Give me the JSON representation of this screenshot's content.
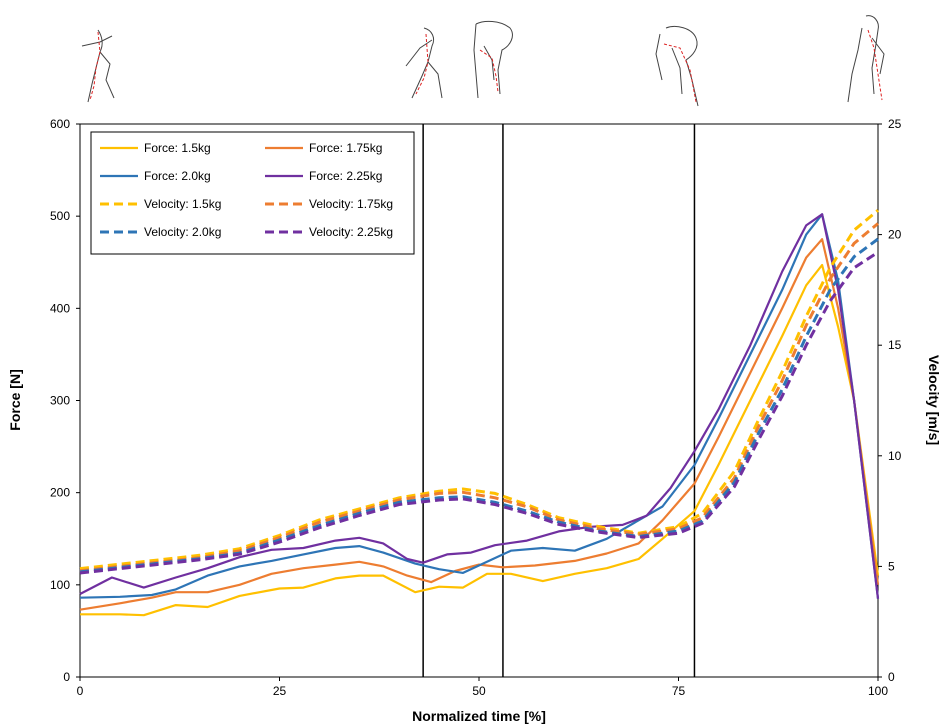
{
  "chart_data": {
    "type": "line",
    "xlabel": "Normalized time [%]",
    "ylabel": "Force [N]",
    "y2label": "Velocity [m/s]",
    "xlim": [
      0,
      100
    ],
    "ylim": [
      0,
      600
    ],
    "y2lim": [
      0,
      25
    ],
    "xticks": [
      "0",
      "25",
      "50",
      "75",
      "100"
    ],
    "yticks": [
      "0",
      "100",
      "200",
      "300",
      "400",
      "500",
      "600"
    ],
    "y2ticks": [
      "0",
      "5",
      "10",
      "15",
      "20",
      "25"
    ],
    "phase_lines_x": [
      43,
      53,
      77
    ],
    "legend_position": "top-left",
    "grid": false,
    "series": [
      {
        "name": "Force: 1.5kg",
        "axis": "left",
        "dash": false,
        "color": "#FFC000",
        "points": [
          [
            0,
            68
          ],
          [
            5,
            68
          ],
          [
            8,
            67
          ],
          [
            12,
            78
          ],
          [
            16,
            76
          ],
          [
            20,
            88
          ],
          [
            25,
            96
          ],
          [
            28,
            97
          ],
          [
            32,
            107
          ],
          [
            35,
            110
          ],
          [
            38,
            110
          ],
          [
            42,
            92
          ],
          [
            45,
            98
          ],
          [
            48,
            97
          ],
          [
            51,
            112
          ],
          [
            54,
            112
          ],
          [
            58,
            104
          ],
          [
            62,
            112
          ],
          [
            66,
            118
          ],
          [
            70,
            128
          ],
          [
            73,
            150
          ],
          [
            77,
            180
          ],
          [
            80,
            230
          ],
          [
            84,
            300
          ],
          [
            88,
            370
          ],
          [
            91,
            425
          ],
          [
            93,
            447
          ],
          [
            95,
            380
          ],
          [
            97,
            300
          ],
          [
            100,
            110
          ]
        ]
      },
      {
        "name": "Force: 1.75kg",
        "axis": "left",
        "dash": false,
        "color": "#ED7D31",
        "points": [
          [
            0,
            73
          ],
          [
            5,
            80
          ],
          [
            9,
            86
          ],
          [
            12,
            92
          ],
          [
            16,
            92
          ],
          [
            20,
            100
          ],
          [
            24,
            112
          ],
          [
            28,
            118
          ],
          [
            32,
            122
          ],
          [
            35,
            125
          ],
          [
            38,
            120
          ],
          [
            41,
            110
          ],
          [
            44,
            103
          ],
          [
            47,
            115
          ],
          [
            50,
            122
          ],
          [
            53,
            119
          ],
          [
            57,
            121
          ],
          [
            62,
            126
          ],
          [
            66,
            134
          ],
          [
            70,
            145
          ],
          [
            73,
            170
          ],
          [
            77,
            210
          ],
          [
            80,
            260
          ],
          [
            84,
            330
          ],
          [
            88,
            400
          ],
          [
            91,
            455
          ],
          [
            93,
            475
          ],
          [
            95,
            400
          ],
          [
            97,
            300
          ],
          [
            100,
            100
          ]
        ]
      },
      {
        "name": "Force: 2.0kg",
        "axis": "left",
        "dash": false,
        "color": "#2E75B6",
        "points": [
          [
            0,
            86
          ],
          [
            5,
            87
          ],
          [
            9,
            89
          ],
          [
            12,
            95
          ],
          [
            16,
            110
          ],
          [
            20,
            120
          ],
          [
            24,
            126
          ],
          [
            28,
            133
          ],
          [
            32,
            140
          ],
          [
            35,
            142
          ],
          [
            38,
            135
          ],
          [
            42,
            123
          ],
          [
            45,
            117
          ],
          [
            48,
            113
          ],
          [
            51,
            125
          ],
          [
            54,
            137
          ],
          [
            58,
            140
          ],
          [
            62,
            137
          ],
          [
            66,
            150
          ],
          [
            70,
            170
          ],
          [
            73,
            185
          ],
          [
            77,
            230
          ],
          [
            80,
            280
          ],
          [
            84,
            350
          ],
          [
            88,
            420
          ],
          [
            91,
            480
          ],
          [
            93,
            502
          ],
          [
            95,
            430
          ],
          [
            97,
            300
          ],
          [
            100,
            85
          ]
        ]
      },
      {
        "name": "Force: 2.25kg",
        "axis": "left",
        "dash": false,
        "color": "#7030A0",
        "points": [
          [
            0,
            90
          ],
          [
            4,
            108
          ],
          [
            8,
            97
          ],
          [
            12,
            108
          ],
          [
            16,
            118
          ],
          [
            20,
            130
          ],
          [
            24,
            138
          ],
          [
            28,
            140
          ],
          [
            32,
            148
          ],
          [
            35,
            151
          ],
          [
            38,
            145
          ],
          [
            41,
            128
          ],
          [
            43,
            124
          ],
          [
            46,
            133
          ],
          [
            49,
            135
          ],
          [
            52,
            143
          ],
          [
            56,
            148
          ],
          [
            60,
            158
          ],
          [
            64,
            163
          ],
          [
            68,
            165
          ],
          [
            71,
            175
          ],
          [
            74,
            205
          ],
          [
            77,
            245
          ],
          [
            80,
            290
          ],
          [
            84,
            360
          ],
          [
            88,
            440
          ],
          [
            91,
            490
          ],
          [
            93,
            502
          ],
          [
            95,
            420
          ],
          [
            97,
            300
          ],
          [
            100,
            85
          ]
        ]
      },
      {
        "name": "Velocity: 1.5kg",
        "axis": "right",
        "dash": true,
        "color": "#FFC000",
        "points": [
          [
            0,
            4.9
          ],
          [
            5,
            5.1
          ],
          [
            10,
            5.3
          ],
          [
            15,
            5.5
          ],
          [
            20,
            5.8
          ],
          [
            25,
            6.4
          ],
          [
            30,
            7.1
          ],
          [
            35,
            7.6
          ],
          [
            40,
            8.1
          ],
          [
            45,
            8.4
          ],
          [
            48,
            8.5
          ],
          [
            52,
            8.3
          ],
          [
            56,
            7.8
          ],
          [
            60,
            7.2
          ],
          [
            65,
            6.8
          ],
          [
            70,
            6.5
          ],
          [
            75,
            6.8
          ],
          [
            78,
            7.4
          ],
          [
            82,
            9.3
          ],
          [
            85,
            11.6
          ],
          [
            88,
            13.8
          ],
          [
            91,
            16.3
          ],
          [
            94,
            18.5
          ],
          [
            97,
            20.2
          ],
          [
            100,
            21.1
          ]
        ]
      },
      {
        "name": "Velocity: 1.75kg",
        "axis": "right",
        "dash": true,
        "color": "#ED7D31",
        "points": [
          [
            0,
            4.8
          ],
          [
            5,
            5.0
          ],
          [
            10,
            5.2
          ],
          [
            15,
            5.4
          ],
          [
            20,
            5.7
          ],
          [
            25,
            6.3
          ],
          [
            30,
            7.0
          ],
          [
            35,
            7.5
          ],
          [
            40,
            8.0
          ],
          [
            45,
            8.3
          ],
          [
            48,
            8.35
          ],
          [
            52,
            8.1
          ],
          [
            56,
            7.7
          ],
          [
            60,
            7.1
          ],
          [
            65,
            6.7
          ],
          [
            70,
            6.45
          ],
          [
            75,
            6.7
          ],
          [
            78,
            7.2
          ],
          [
            82,
            9.0
          ],
          [
            85,
            11.3
          ],
          [
            88,
            13.4
          ],
          [
            91,
            15.9
          ],
          [
            94,
            18.0
          ],
          [
            97,
            19.6
          ],
          [
            100,
            20.5
          ]
        ]
      },
      {
        "name": "Velocity: 2.0kg",
        "axis": "right",
        "dash": true,
        "color": "#2E75B6",
        "points": [
          [
            0,
            4.75
          ],
          [
            5,
            4.95
          ],
          [
            10,
            5.15
          ],
          [
            15,
            5.35
          ],
          [
            20,
            5.6
          ],
          [
            25,
            6.2
          ],
          [
            30,
            6.85
          ],
          [
            35,
            7.4
          ],
          [
            40,
            7.9
          ],
          [
            45,
            8.1
          ],
          [
            48,
            8.15
          ],
          [
            52,
            7.9
          ],
          [
            56,
            7.5
          ],
          [
            60,
            7.0
          ],
          [
            65,
            6.6
          ],
          [
            70,
            6.35
          ],
          [
            75,
            6.6
          ],
          [
            78,
            7.05
          ],
          [
            82,
            8.8
          ],
          [
            85,
            11.0
          ],
          [
            88,
            13.0
          ],
          [
            91,
            15.4
          ],
          [
            94,
            17.5
          ],
          [
            97,
            19.0
          ],
          [
            100,
            19.8
          ]
        ]
      },
      {
        "name": "Velocity: 2.25kg",
        "axis": "right",
        "dash": true,
        "color": "#7030A0",
        "points": [
          [
            0,
            4.7
          ],
          [
            5,
            4.9
          ],
          [
            10,
            5.1
          ],
          [
            15,
            5.3
          ],
          [
            20,
            5.55
          ],
          [
            25,
            6.1
          ],
          [
            30,
            6.75
          ],
          [
            35,
            7.3
          ],
          [
            40,
            7.8
          ],
          [
            45,
            8.0
          ],
          [
            48,
            8.05
          ],
          [
            52,
            7.8
          ],
          [
            56,
            7.4
          ],
          [
            60,
            6.9
          ],
          [
            65,
            6.55
          ],
          [
            70,
            6.3
          ],
          [
            75,
            6.5
          ],
          [
            78,
            6.95
          ],
          [
            82,
            8.6
          ],
          [
            85,
            10.7
          ],
          [
            88,
            12.7
          ],
          [
            91,
            15.0
          ],
          [
            94,
            17.0
          ],
          [
            97,
            18.5
          ],
          [
            100,
            19.2
          ]
        ]
      }
    ]
  }
}
